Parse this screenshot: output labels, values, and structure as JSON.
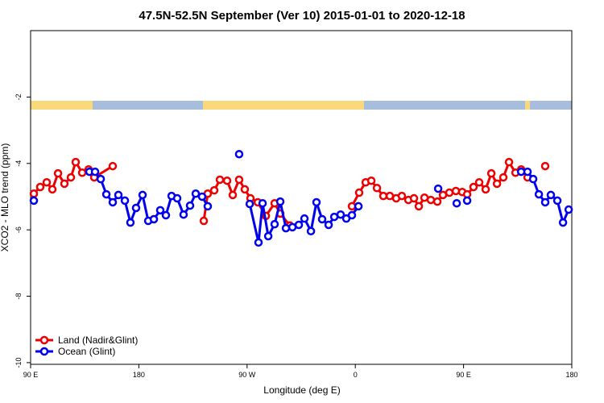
{
  "chart_data": {
    "type": "line",
    "title": "47.5N-52.5N September (Ver 10)   2015-01-01 to 2020-12-18",
    "x_label": "Longitude (deg E)",
    "y_label": "XCO2 - MLO trend (ppm)",
    "xlim": [
      90,
      540
    ],
    "ylim": [
      -10.05,
      0
    ],
    "xticks": [
      {
        "value": 90,
        "label": "90 E"
      },
      {
        "value": 180,
        "label": "180"
      },
      {
        "value": 270,
        "label": "90 W"
      },
      {
        "value": 360,
        "label": "0"
      },
      {
        "value": 450,
        "label": "90 E"
      },
      {
        "value": 540,
        "label": "180"
      }
    ],
    "yticks": [
      -10,
      -8,
      -6,
      -4,
      -2
    ],
    "legend": "bottom-left",
    "series": [
      {
        "name": "Land (Nadir&Glint)",
        "color": "#ee0000",
        "x": [
          92.7,
          98,
          103.4,
          108.1,
          112.8,
          118.1,
          123.5,
          127.5,
          132.9,
          138.2,
          142.9,
          158.3,
          null,
          234,
          237.3,
          242.7,
          247.4,
          253.4,
          258.1,
          263.4,
          268.1,
          272.8,
          278.9,
          285.6,
          292.9,
          297.6,
          305.6,
          null,
          357.2,
          363.2,
          368.6,
          373.3,
          378,
          383.3,
          388.7,
          394,
          398.7,
          404.1,
          408.8,
          412.8,
          417.5,
          422.8,
          428.2,
          432.9,
          438.2,
          443.6,
          448.9,
          453,
          458.3,
          463,
          468.4,
          473.1,
          477.8,
          483.1,
          487.8,
          493.2,
          497.9,
          503.2,
          null,
          517.9
        ],
        "values": [
          -4.91,
          -4.71,
          -4.57,
          -4.78,
          -4.3,
          -4.61,
          -4.42,
          -3.96,
          -4.28,
          -4.18,
          -4.42,
          -4.08,
          null,
          -5.73,
          -4.91,
          -4.81,
          -4.49,
          -4.52,
          -4.95,
          -4.49,
          -4.78,
          -5.05,
          -5.17,
          -5.58,
          -5.2,
          -5.51,
          -5.87,
          null,
          -5.29,
          -4.88,
          -4.57,
          -4.52,
          -4.74,
          -4.98,
          -4.98,
          -5.05,
          -4.98,
          -5.1,
          -5.05,
          -5.29,
          -5.03,
          -5.1,
          -5.15,
          -4.95,
          -4.88,
          -4.83,
          -4.86,
          -4.93,
          -4.71,
          -4.57,
          -4.78,
          -4.3,
          -4.61,
          -4.42,
          -3.96,
          -4.28,
          -4.18,
          -4.42,
          null,
          -4.08
        ]
      },
      {
        "name": "Ocean (Glint)",
        "color": "#0000ee",
        "x": [
          92.7,
          null,
          138.9,
          143.6,
          148.3,
          153,
          158.3,
          163,
          168.4,
          173,
          177.7,
          183.1,
          187.8,
          192.5,
          197.8,
          202.5,
          207.2,
          211.9,
          217.2,
          222.6,
          227.3,
          232.6,
          237.3,
          null,
          263.4,
          null,
          272.2,
          279.5,
          282.9,
          287.6,
          292.9,
          297.6,
          302.3,
          307.7,
          313,
          317.7,
          323.1,
          327.7,
          332.4,
          337.8,
          342.5,
          347.8,
          352.5,
          357.2,
          362.6,
          null,
          428.9,
          null,
          444.3,
          null,
          453,
          null,
          497.9,
          503.2,
          507.9,
          512.6,
          517.9,
          522.6,
          528,
          532.7,
          537.4
        ],
        "values": [
          -5.12,
          null,
          -4.25,
          -4.25,
          -4.47,
          -4.93,
          -5.17,
          -4.95,
          -5.12,
          -5.78,
          -5.34,
          -4.95,
          -5.73,
          -5.68,
          -5.41,
          -5.56,
          -4.98,
          -5.05,
          -5.54,
          -5.27,
          -4.91,
          -5.0,
          -5.29,
          null,
          -3.72,
          null,
          -5.22,
          -6.38,
          -5.2,
          -6.19,
          -5.83,
          -5.15,
          -5.95,
          -5.92,
          -5.85,
          -5.66,
          -6.04,
          -5.17,
          -5.68,
          -5.85,
          -5.61,
          -5.54,
          -5.66,
          -5.56,
          -5.29,
          null,
          -4.76,
          null,
          -5.2,
          null,
          -5.12,
          null,
          -4.25,
          -4.25,
          -4.47,
          -4.93,
          -5.17,
          -4.95,
          -5.12,
          -5.78,
          -5.39
        ]
      }
    ]
  }
}
